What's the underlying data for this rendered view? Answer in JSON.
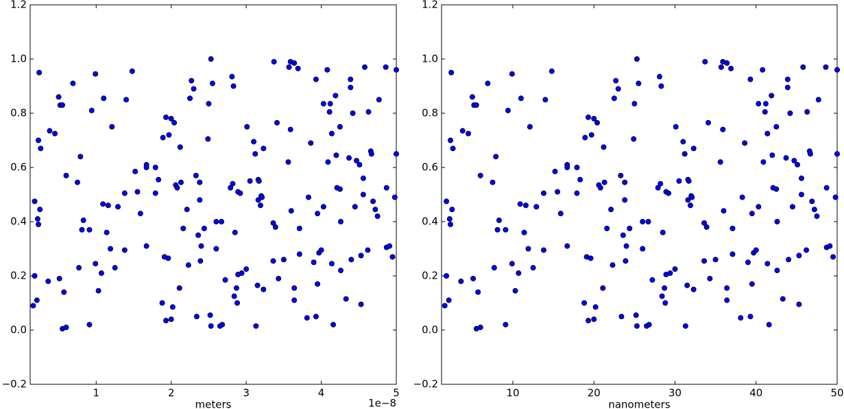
{
  "chart_data": [
    {
      "type": "scatter",
      "x_label": "meters",
      "x_offset_label": "1e−8",
      "color": "#0000ff",
      "edgecolor": "#000000",
      "xlim": [
        1.2e-09,
        5e-08
      ],
      "ylim": [
        -0.2,
        1.2
      ],
      "xticks": [
        {
          "value": 1e-08,
          "label": "1"
        },
        {
          "value": 2e-08,
          "label": "2"
        },
        {
          "value": 3e-08,
          "label": "3"
        },
        {
          "value": 4e-08,
          "label": "4"
        },
        {
          "value": 5e-08,
          "label": "5"
        }
      ],
      "yticks": [
        {
          "value": -0.2,
          "label": "−0.2"
        },
        {
          "value": 0,
          "label": "0.0"
        },
        {
          "value": 0.2,
          "label": "0.2"
        },
        {
          "value": 0.4,
          "label": "0.4"
        },
        {
          "value": 0.6,
          "label": "0.6"
        },
        {
          "value": 0.8,
          "label": "0.8"
        },
        {
          "value": 1,
          "label": "1.0"
        },
        {
          "value": 1.2,
          "label": "1.2"
        }
      ],
      "x": [
        1.6e-09,
        1.8e-09,
        1.8e-09,
        2.1e-09,
        2.2e-09,
        2.3e-09,
        2.3e-09,
        2.4e-09,
        2.5e-09,
        2.6e-09,
        3.6e-09,
        3.8e-09,
        4.5e-09,
        5e-09,
        5.1e-09,
        5.2e-09,
        5.5e-09,
        5.5e-09,
        5.7e-09,
        6e-09,
        6e-09,
        6.9e-09,
        7.5e-09,
        7.7e-09,
        7.9e-09,
        8.1e-09,
        8.3e-09,
        9.1e-09,
        9.1e-09,
        9.4e-09,
        9.9e-09,
        9.9e-09,
        1.03e-08,
        1.07e-08,
        1.09e-08,
        1.1e-08,
        1.14e-08,
        1.16e-08,
        1.19e-08,
        1.21e-08,
        1.25e-08,
        1.29e-08,
        1.38e-08,
        1.38e-08,
        1.4e-08,
        1.48e-08,
        1.52e-08,
        1.55e-08,
        1.59e-08,
        1.67e-08,
        1.67e-08,
        1.67e-08,
        1.79e-08,
        1.79e-08,
        1.83e-08,
        1.88e-08,
        1.89e-08,
        1.91e-08,
        1.93e-08,
        1.93e-08,
        1.96e-08,
        1.97e-08,
        2e-08,
        2e-08,
        2.02e-08,
        2.04e-08,
        2.06e-08,
        2.08e-08,
        2.11e-08,
        2.12e-08,
        2.13e-08,
        2.16e-08,
        2.21e-08,
        2.23e-08,
        2.25e-08,
        2.27e-08,
        2.3e-08,
        2.33e-08,
        2.34e-08,
        2.36e-08,
        2.38e-08,
        2.38e-08,
        2.39e-08,
        2.4e-08,
        2.44e-08,
        2.49e-08,
        2.5e-08,
        2.52e-08,
        2.53e-08,
        2.53e-08,
        2.55e-08,
        2.6e-08,
        2.6e-08,
        2.65e-08,
        2.67e-08,
        2.68e-08,
        2.72e-08,
        2.79e-08,
        2.81e-08,
        2.82e-08,
        2.83e-08,
        2.84e-08,
        2.85e-08,
        2.87e-08,
        2.88e-08,
        2.89e-08,
        2.89e-08,
        2.92e-08,
        2.94e-08,
        3e-08,
        3.01e-08,
        3.05e-08,
        3.1e-08,
        3.12e-08,
        3.13e-08,
        3.15e-08,
        3.16e-08,
        3.16e-08,
        3.17e-08,
        3.19e-08,
        3.2e-08,
        3.21e-08,
        3.23e-08,
        3.23e-08,
        3.36e-08,
        3.36e-08,
        3.37e-08,
        3.39e-08,
        3.41e-08,
        3.43e-08,
        3.5e-08,
        3.56e-08,
        3.57e-08,
        3.59e-08,
        3.59e-08,
        3.6e-08,
        3.64e-08,
        3.64e-08,
        3.64e-08,
        3.69e-08,
        3.71e-08,
        3.71e-08,
        3.81e-08,
        3.83e-08,
        3.86e-08,
        3.9e-08,
        3.93e-08,
        3.93e-08,
        3.95e-08,
        3.95e-08,
        3.97e-08,
        4e-08,
        4.03e-08,
        4.03e-08,
        4.08e-08,
        4.09e-08,
        4.11e-08,
        4.12e-08,
        4.14e-08,
        4.14e-08,
        4.16e-08,
        4.19e-08,
        4.2e-08,
        4.21e-08,
        4.25e-08,
        4.25e-08,
        4.26e-08,
        4.26e-08,
        4.33e-08,
        4.37e-08,
        4.39e-08,
        4.39e-08,
        4.4e-08,
        4.42e-08,
        4.45e-08,
        4.47e-08,
        4.51e-08,
        4.53e-08,
        4.53e-08,
        4.56e-08,
        4.56e-08,
        4.58e-08,
        4.62e-08,
        4.63e-08,
        4.66e-08,
        4.67e-08,
        4.69e-08,
        4.72e-08,
        4.75e-08,
        4.77e-08,
        4.86e-08,
        4.87e-08,
        4.87e-08,
        4.91e-08,
        4.95e-08,
        4.98e-08,
        5e-08,
        5e-08
      ],
      "y": [
        0.09,
        0.2,
        0.475,
        0.11,
        0.41,
        0.39,
        0.7,
        0.95,
        0.445,
        0.67,
        0.18,
        0.735,
        0.725,
        0.86,
        0.19,
        0.83,
        0.83,
        0.005,
        0.14,
        0.57,
        0.01,
        0.91,
        0.545,
        0.23,
        0.64,
        0.37,
        0.405,
        0.37,
        0.02,
        0.81,
        0.245,
        0.945,
        0.145,
        0.21,
        0.465,
        0.855,
        0.36,
        0.46,
        0.3,
        0.75,
        0.23,
        0.455,
        0.295,
        0.505,
        0.85,
        0.955,
        0.585,
        0.51,
        0.43,
        0.61,
        0.6,
        0.31,
        0.6,
        0.505,
        0.555,
        0.1,
        0.71,
        0.27,
        0.785,
        0.035,
        0.265,
        0.72,
        0.78,
        0.04,
        0.085,
        0.765,
        0.535,
        0.525,
        0.155,
        0.675,
        0.545,
        0.375,
        0.445,
        0.24,
        0.855,
        0.92,
        0.89,
        0.57,
        0.05,
        0.35,
        0.48,
        0.545,
        0.255,
        0.31,
        0.375,
        0.705,
        0.835,
        0.055,
        1.0,
        0.015,
        0.91,
        0.4,
        0.3,
        0.015,
        0.4,
        0.02,
        0.185,
        0.525,
        0.935,
        0.54,
        0.9,
        0.125,
        0.36,
        0.155,
        0.1,
        0.205,
        0.51,
        0.505,
        0.21,
        0.225,
        0.75,
        0.55,
        0.695,
        0.65,
        0.015,
        0.165,
        0.555,
        0.48,
        0.55,
        0.46,
        0.495,
        0.49,
        0.15,
        0.67,
        0.395,
        0.255,
        0.99,
        0.38,
        0.765,
        0.19,
        0.26,
        0.62,
        0.97,
        0.74,
        0.99,
        0.44,
        0.985,
        0.155,
        0.11,
        0.965,
        0.375,
        0.28,
        0.045,
        0.49,
        0.69,
        0.25,
        0.925,
        0.05,
        0.43,
        0.17,
        0.285,
        0.295,
        0.835,
        0.455,
        0.96,
        0.62,
        0.805,
        0.835,
        0.725,
        0.245,
        0.02,
        0.865,
        0.645,
        0.525,
        0.52,
        0.75,
        0.4,
        0.22,
        0.115,
        0.635,
        0.925,
        0.895,
        0.26,
        0.8,
        0.455,
        0.625,
        0.61,
        0.275,
        0.095,
        0.5,
        0.56,
        0.97,
        0.295,
        0.805,
        0.66,
        0.65,
        0.475,
        0.445,
        0.42,
        0.85,
        0.97,
        0.525,
        0.305,
        0.31,
        0.27,
        0.49,
        0.96,
        0.65
      ]
    },
    {
      "type": "scatter",
      "x_label": "nanometers",
      "color": "#0000ff",
      "edgecolor": "#000000",
      "xlim": [
        1.2,
        50
      ],
      "ylim": [
        -0.2,
        1.2
      ],
      "xticks": [
        10,
        20,
        30,
        40,
        50
      ],
      "yticks": [
        {
          "value": -0.2,
          "label": "−0.2"
        },
        {
          "value": 0,
          "label": "0.0"
        },
        {
          "value": 0.2,
          "label": "0.2"
        },
        {
          "value": 0.4,
          "label": "0.4"
        },
        {
          "value": 0.6,
          "label": "0.6"
        },
        {
          "value": 0.8,
          "label": "0.8"
        },
        {
          "value": 1,
          "label": "1.0"
        },
        {
          "value": 1.2,
          "label": "1.2"
        }
      ],
      "x": [
        1.6,
        1.8,
        1.8,
        2.1,
        2.2,
        2.3,
        2.3,
        2.4,
        2.5,
        2.6,
        3.6,
        3.8,
        4.5,
        5.0,
        5.1,
        5.2,
        5.5,
        5.5,
        5.7,
        6.0,
        6.0,
        6.9,
        7.5,
        7.7,
        7.9,
        8.1,
        8.3,
        9.1,
        9.1,
        9.4,
        9.9,
        9.9,
        10.3,
        10.7,
        10.9,
        11.0,
        11.4,
        11.6,
        11.9,
        12.1,
        12.5,
        12.9,
        13.8,
        13.8,
        14.0,
        14.8,
        15.2,
        15.5,
        15.9,
        16.7,
        16.7,
        16.7,
        17.9,
        17.9,
        18.3,
        18.8,
        18.9,
        19.1,
        19.3,
        19.3,
        19.6,
        19.7,
        20.0,
        20.0,
        20.2,
        20.4,
        20.6,
        20.8,
        21.1,
        21.2,
        21.3,
        21.6,
        22.1,
        22.3,
        22.5,
        22.7,
        23.0,
        23.3,
        23.4,
        23.6,
        23.8,
        23.8,
        23.9,
        24.0,
        24.4,
        24.9,
        25.0,
        25.2,
        25.3,
        25.3,
        25.5,
        26.0,
        26.0,
        26.5,
        26.7,
        26.8,
        27.2,
        27.9,
        28.1,
        28.2,
        28.3,
        28.4,
        28.5,
        28.7,
        28.8,
        28.9,
        28.9,
        29.2,
        29.4,
        30.0,
        30.1,
        30.5,
        31.0,
        31.2,
        31.3,
        31.5,
        31.6,
        31.6,
        31.7,
        31.9,
        32.0,
        32.1,
        32.3,
        32.3,
        33.6,
        33.6,
        33.7,
        33.9,
        34.1,
        34.3,
        35.0,
        35.6,
        35.7,
        35.9,
        35.9,
        36.0,
        36.4,
        36.4,
        36.4,
        36.9,
        37.1,
        37.1,
        38.1,
        38.3,
        38.6,
        39.0,
        39.3,
        39.3,
        39.5,
        39.5,
        39.7,
        40.0,
        40.3,
        40.3,
        40.8,
        40.9,
        41.1,
        41.2,
        41.4,
        41.4,
        41.6,
        41.9,
        42.0,
        42.1,
        42.5,
        42.5,
        42.6,
        42.6,
        43.3,
        43.7,
        43.9,
        43.9,
        44.0,
        44.2,
        44.5,
        44.7,
        45.1,
        45.3,
        45.3,
        45.6,
        45.6,
        45.8,
        46.2,
        46.3,
        46.6,
        46.7,
        46.9,
        47.2,
        47.5,
        47.7,
        48.6,
        48.7,
        48.7,
        49.1,
        49.5,
        49.8,
        50.0,
        50.0
      ],
      "y": [
        0.09,
        0.2,
        0.475,
        0.11,
        0.41,
        0.39,
        0.7,
        0.95,
        0.445,
        0.67,
        0.18,
        0.735,
        0.725,
        0.86,
        0.19,
        0.83,
        0.83,
        0.005,
        0.14,
        0.57,
        0.01,
        0.91,
        0.545,
        0.23,
        0.64,
        0.37,
        0.405,
        0.37,
        0.02,
        0.81,
        0.245,
        0.945,
        0.145,
        0.21,
        0.465,
        0.855,
        0.36,
        0.46,
        0.3,
        0.75,
        0.23,
        0.455,
        0.295,
        0.505,
        0.85,
        0.955,
        0.585,
        0.51,
        0.43,
        0.61,
        0.6,
        0.31,
        0.6,
        0.505,
        0.555,
        0.1,
        0.71,
        0.27,
        0.785,
        0.035,
        0.265,
        0.72,
        0.78,
        0.04,
        0.085,
        0.765,
        0.535,
        0.525,
        0.155,
        0.675,
        0.545,
        0.375,
        0.445,
        0.24,
        0.855,
        0.92,
        0.89,
        0.57,
        0.05,
        0.35,
        0.48,
        0.545,
        0.255,
        0.31,
        0.375,
        0.705,
        0.835,
        0.055,
        1.0,
        0.015,
        0.91,
        0.4,
        0.3,
        0.015,
        0.4,
        0.02,
        0.185,
        0.525,
        0.935,
        0.54,
        0.9,
        0.125,
        0.36,
        0.155,
        0.1,
        0.205,
        0.51,
        0.505,
        0.21,
        0.225,
        0.75,
        0.55,
        0.695,
        0.65,
        0.015,
        0.165,
        0.555,
        0.48,
        0.55,
        0.46,
        0.495,
        0.49,
        0.15,
        0.67,
        0.395,
        0.255,
        0.99,
        0.38,
        0.765,
        0.19,
        0.26,
        0.62,
        0.97,
        0.74,
        0.99,
        0.44,
        0.985,
        0.155,
        0.11,
        0.965,
        0.375,
        0.28,
        0.045,
        0.49,
        0.69,
        0.25,
        0.925,
        0.05,
        0.43,
        0.17,
        0.285,
        0.295,
        0.835,
        0.455,
        0.96,
        0.62,
        0.805,
        0.835,
        0.725,
        0.245,
        0.02,
        0.865,
        0.645,
        0.525,
        0.52,
        0.75,
        0.4,
        0.22,
        0.115,
        0.635,
        0.925,
        0.895,
        0.26,
        0.8,
        0.455,
        0.625,
        0.61,
        0.275,
        0.095,
        0.5,
        0.56,
        0.97,
        0.295,
        0.805,
        0.66,
        0.65,
        0.475,
        0.445,
        0.42,
        0.85,
        0.97,
        0.525,
        0.305,
        0.31,
        0.27,
        0.49,
        0.96,
        0.65
      ]
    }
  ]
}
